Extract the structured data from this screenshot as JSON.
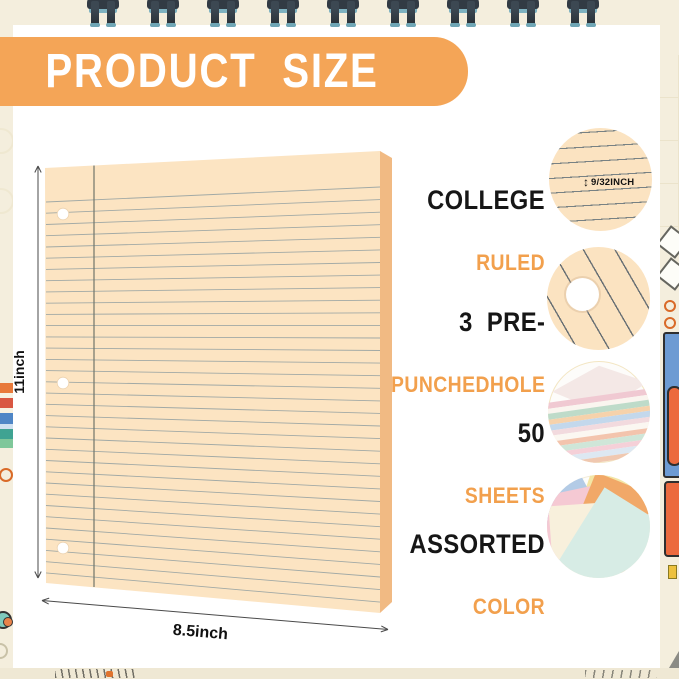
{
  "banner": {
    "title": "PRODUCT  SIZE",
    "bg_color": "#f4a557",
    "text_color": "#ffffff"
  },
  "paper": {
    "height_label": "11inch",
    "width_label": "8.5inch",
    "face_color": "#fce4c2",
    "edge_color": "#f1ba83",
    "rule_color": "#929fa1",
    "hole_count": 3
  },
  "features": [
    {
      "primary": "COLLEGE",
      "secondary": "RULED",
      "icon": "ruled-paper-circle",
      "annotation": "9/32INCH",
      "arrow_glyph": "↕"
    },
    {
      "primary": "3  PRE-",
      "secondary": "PUNCHEDHOLE",
      "icon": "punched-hole-circle"
    },
    {
      "primary": "50",
      "secondary": "SHEETS",
      "icon": "sheet-stack-circle"
    },
    {
      "primary": "ASSORTED",
      "secondary": "COLOR",
      "icon": "assorted-papers-circle"
    }
  ],
  "colors": {
    "accent_orange": "#f4a557",
    "label_black": "#161616",
    "label_orange": "#f2a04d",
    "background_cream": "#f4eedd"
  }
}
